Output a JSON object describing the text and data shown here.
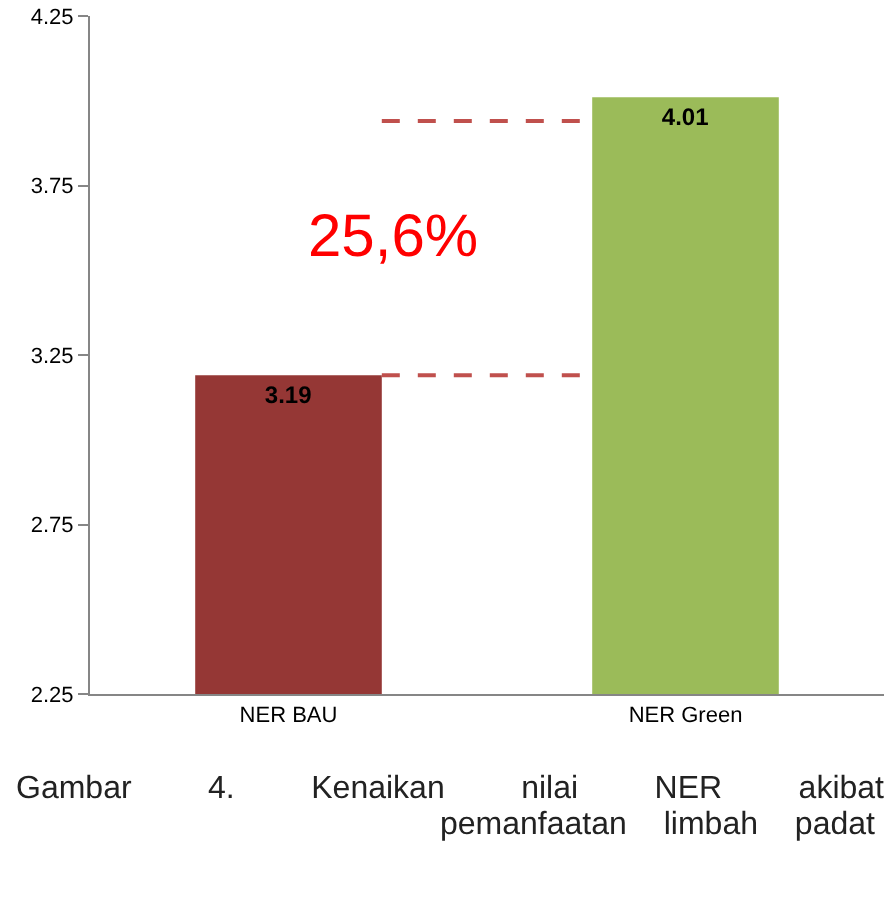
{
  "chart_data": {
    "type": "bar",
    "categories": [
      "NER BAU",
      "NER Green"
    ],
    "values": [
      3.19,
      4.01
    ],
    "colors": [
      "#953735",
      "#9bbb59"
    ],
    "ylim": [
      2.25,
      4.25
    ],
    "yticks": [
      2.25,
      2.75,
      3.25,
      3.75,
      4.25
    ],
    "grid": false,
    "data_labels": true,
    "ref_lines": [
      {
        "axis": "y",
        "value": 3.19,
        "color": "#c0504d",
        "line_style": "dashed"
      },
      {
        "axis": "y",
        "value": 3.94,
        "color": "#c0504d",
        "line_style": "dashed"
      }
    ],
    "annotations": [
      "25,6%",
      "Gambar 4. Kenaikan nilai NER akibat pemanfaatan limbah padat"
    ]
  }
}
